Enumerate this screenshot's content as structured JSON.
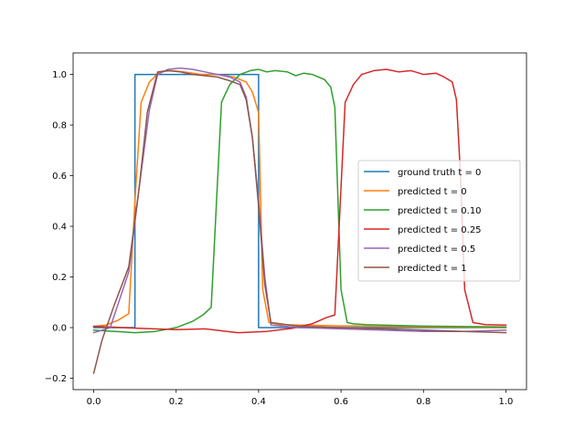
{
  "chart_data": {
    "type": "line",
    "title": "",
    "xlabel": "",
    "ylabel": "",
    "xlim": [
      -0.05,
      1.05
    ],
    "ylim": [
      -0.245,
      1.085
    ],
    "xticks": [
      0.0,
      0.2,
      0.4,
      0.6,
      0.8,
      1.0
    ],
    "xtick_labels": [
      "0.0",
      "0.2",
      "0.4",
      "0.6",
      "0.8",
      "1.0"
    ],
    "yticks": [
      -0.2,
      0.0,
      0.2,
      0.4,
      0.6,
      0.8,
      1.0
    ],
    "ytick_labels": [
      "−0.2",
      "0.0",
      "0.2",
      "0.4",
      "0.6",
      "0.8",
      "1.0"
    ],
    "grid": false,
    "legend_position": "center-right",
    "series": [
      {
        "name": "ground truth t = 0",
        "color": "#1f77b4",
        "x": [
          0.0,
          0.1,
          0.1,
          0.4,
          0.4,
          1.0
        ],
        "y": [
          0.0,
          0.0,
          1.0,
          1.0,
          0.0,
          0.0
        ]
      },
      {
        "name": "predicted t = 0",
        "color": "#ff7f0e",
        "x": [
          0.0,
          0.03,
          0.06,
          0.085,
          0.1,
          0.115,
          0.135,
          0.16,
          0.19,
          0.22,
          0.26,
          0.3,
          0.34,
          0.37,
          0.385,
          0.4,
          0.41,
          0.425,
          0.45,
          0.5,
          0.6,
          0.7,
          0.8,
          0.9,
          1.0
        ],
        "y": [
          0.005,
          0.01,
          0.03,
          0.055,
          0.5,
          0.89,
          0.97,
          1.01,
          1.015,
          1.01,
          1.0,
          1.0,
          0.99,
          0.97,
          0.93,
          0.85,
          0.15,
          0.02,
          0.012,
          0.01,
          0.007,
          0.005,
          0.003,
          0.002,
          0.0
        ]
      },
      {
        "name": "predicted t = 0.10",
        "color": "#2ca02c",
        "x": [
          0.0,
          0.05,
          0.1,
          0.15,
          0.2,
          0.24,
          0.265,
          0.285,
          0.31,
          0.33,
          0.355,
          0.38,
          0.4,
          0.42,
          0.44,
          0.47,
          0.49,
          0.51,
          0.53,
          0.56,
          0.575,
          0.585,
          0.6,
          0.615,
          0.63,
          0.66,
          0.7,
          0.8,
          0.9,
          1.0
        ],
        "y": [
          -0.01,
          -0.015,
          -0.02,
          -0.015,
          0.0,
          0.025,
          0.05,
          0.08,
          0.89,
          0.96,
          1.0,
          1.015,
          1.02,
          1.01,
          1.015,
          1.01,
          0.995,
          1.005,
          1.0,
          0.98,
          0.95,
          0.87,
          0.15,
          0.02,
          0.015,
          0.012,
          0.01,
          0.006,
          0.004,
          0.003
        ]
      },
      {
        "name": "predicted t = 0.25",
        "color": "#d62728",
        "x": [
          0.0,
          0.1,
          0.2,
          0.27,
          0.35,
          0.42,
          0.48,
          0.53,
          0.565,
          0.585,
          0.61,
          0.63,
          0.65,
          0.68,
          0.71,
          0.74,
          0.77,
          0.8,
          0.83,
          0.85,
          0.87,
          0.88,
          0.89,
          0.9,
          0.92,
          0.95,
          1.0
        ],
        "y": [
          0.005,
          -0.002,
          -0.008,
          -0.005,
          -0.02,
          -0.015,
          -0.003,
          0.015,
          0.04,
          0.05,
          0.89,
          0.96,
          1.0,
          1.015,
          1.02,
          1.01,
          1.015,
          1.0,
          1.005,
          0.99,
          0.97,
          0.9,
          0.6,
          0.15,
          0.02,
          0.012,
          0.01
        ]
      },
      {
        "name": "predicted t = 0.5",
        "color": "#9467bd",
        "x": [
          0.0,
          0.04,
          0.085,
          0.11,
          0.135,
          0.155,
          0.18,
          0.21,
          0.24,
          0.27,
          0.3,
          0.33,
          0.355,
          0.37,
          0.385,
          0.4,
          0.415,
          0.43,
          0.5,
          0.6,
          0.7,
          0.8,
          0.9,
          1.0
        ],
        "y": [
          -0.02,
          0.0,
          0.22,
          0.55,
          0.86,
          1.0,
          1.02,
          1.025,
          1.02,
          1.01,
          1.0,
          0.99,
          0.97,
          0.91,
          0.75,
          0.5,
          0.2,
          0.01,
          0.0,
          -0.005,
          -0.01,
          -0.015,
          -0.015,
          -0.01
        ]
      },
      {
        "name": "predicted t = 1",
        "color": "#8c564b",
        "x": [
          0.0,
          0.02,
          0.05,
          0.085,
          0.11,
          0.13,
          0.155,
          0.18,
          0.21,
          0.24,
          0.27,
          0.3,
          0.33,
          0.355,
          0.37,
          0.385,
          0.4,
          0.415,
          0.43,
          0.5,
          0.6,
          0.7,
          0.8,
          0.9,
          1.0
        ],
        "y": [
          -0.18,
          -0.05,
          0.09,
          0.24,
          0.55,
          0.85,
          1.01,
          1.015,
          1.01,
          1.0,
          0.995,
          0.99,
          0.975,
          0.96,
          0.9,
          0.75,
          0.48,
          0.17,
          0.02,
          0.005,
          0.0,
          -0.005,
          -0.01,
          -0.015,
          -0.02
        ]
      }
    ]
  }
}
